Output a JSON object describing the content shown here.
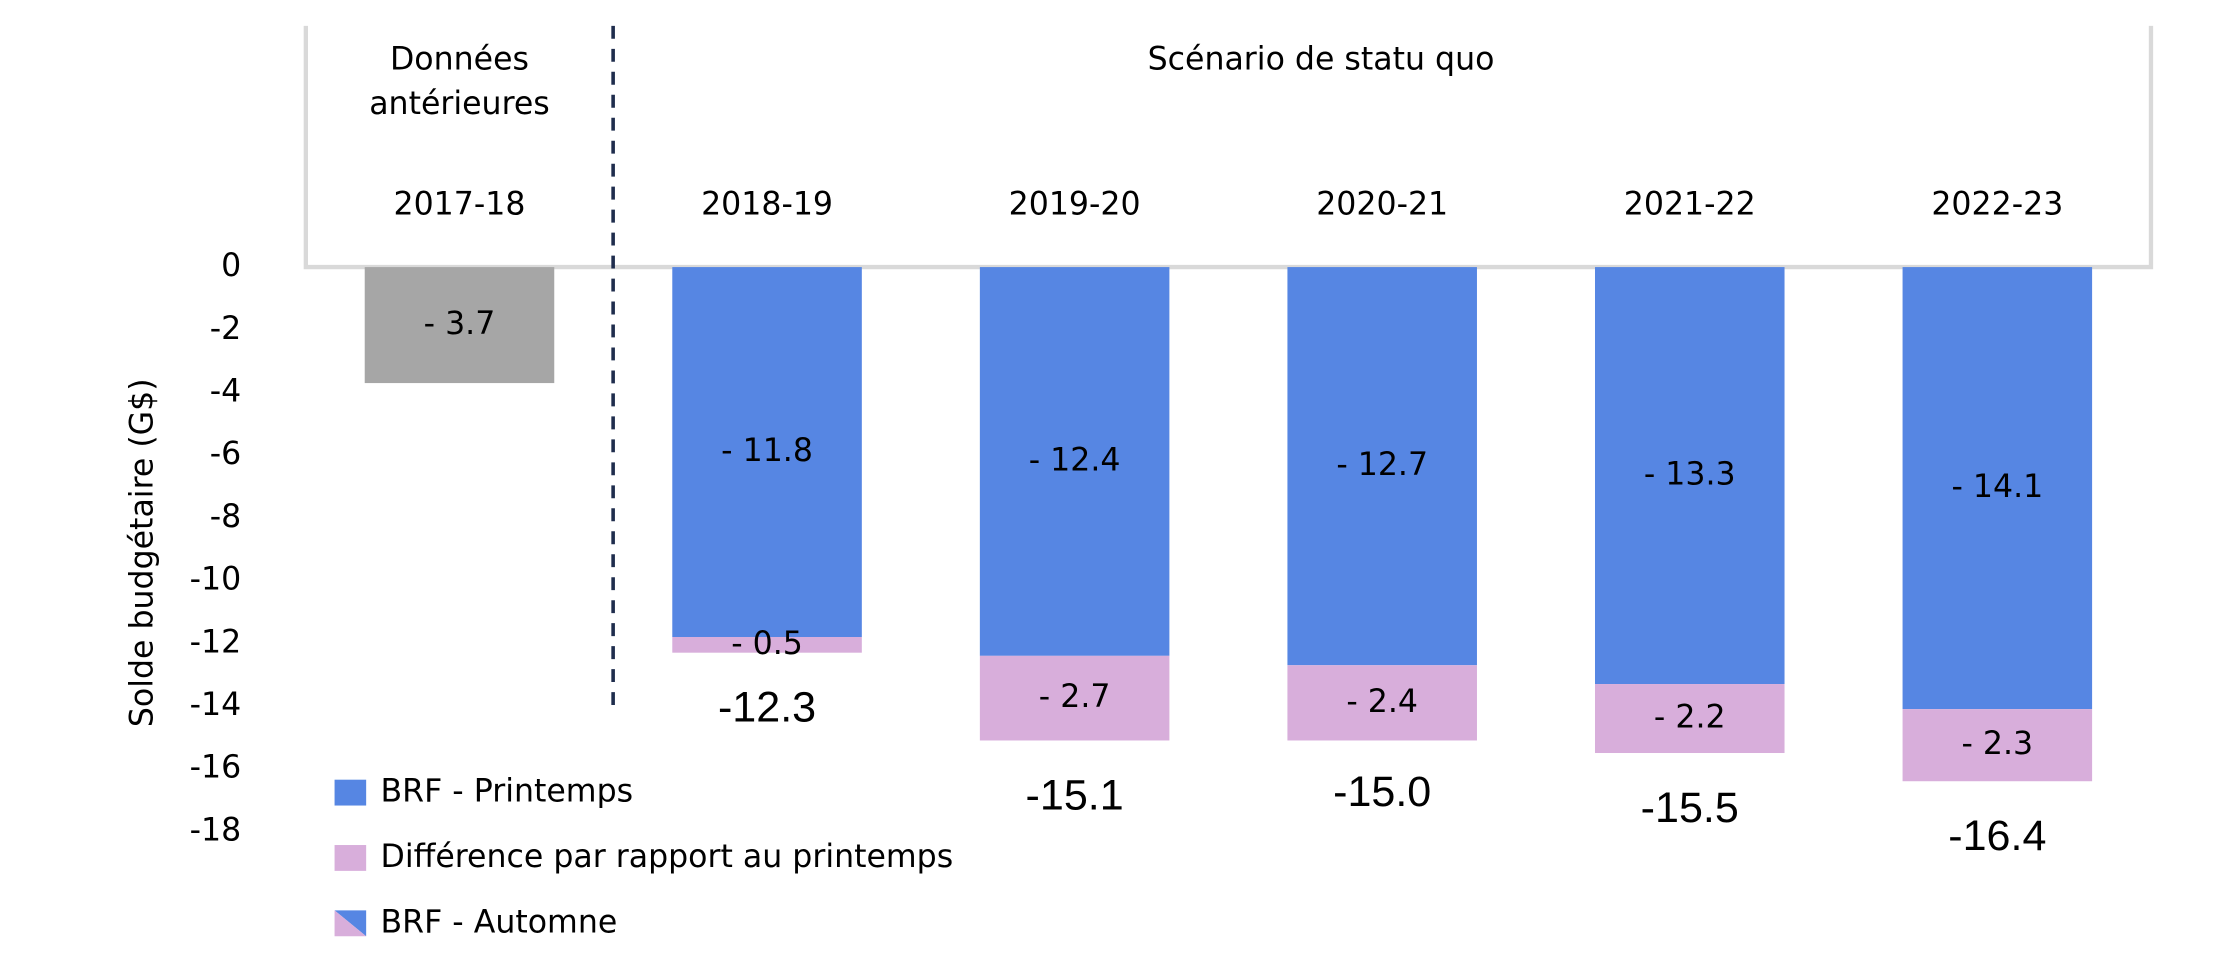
{
  "chart_data": {
    "type": "bar",
    "ylabel": "Solde budgétaire (G$)",
    "groups": [
      {
        "label": "Données antérieures"
      },
      {
        "label": "Scénario de statu quo"
      }
    ],
    "categories": [
      "2017-18",
      "2018-19",
      "2019-20",
      "2020-21",
      "2021-22",
      "2022-23"
    ],
    "ylim": [
      -18,
      0
    ],
    "yticks": [
      0,
      -2,
      -4,
      -6,
      -8,
      -10,
      -12,
      -14,
      -16,
      -18
    ],
    "actual": {
      "color": "#a6a6a6",
      "values": [
        -3.7,
        null,
        null,
        null,
        null,
        null
      ],
      "value_labels": [
        "- 3.7",
        null,
        null,
        null,
        null,
        null
      ]
    },
    "series": [
      {
        "name": "BRF - Printemps",
        "color": "#5686e3",
        "values": [
          null,
          -11.8,
          -12.4,
          -12.7,
          -13.3,
          -14.1
        ],
        "value_labels": [
          null,
          "- 11.8",
          "- 12.4",
          "- 12.7",
          "- 13.3",
          "- 14.1"
        ]
      },
      {
        "name": "Différence par rapport au printemps",
        "color": "#d8aedb",
        "values": [
          null,
          -0.5,
          -2.7,
          -2.4,
          -2.2,
          -2.3
        ],
        "value_labels": [
          null,
          "- 0.5",
          "- 2.7",
          "- 2.4",
          "- 2.2",
          "- 2.3"
        ]
      },
      {
        "name": "BRF - Automne",
        "values": [
          null,
          -12.3,
          -15.1,
          -15.0,
          -15.5,
          -16.4
        ],
        "value_labels": [
          null,
          "-12.3",
          "-15.1",
          "-15.0",
          "-15.5",
          "-16.4"
        ]
      }
    ]
  }
}
